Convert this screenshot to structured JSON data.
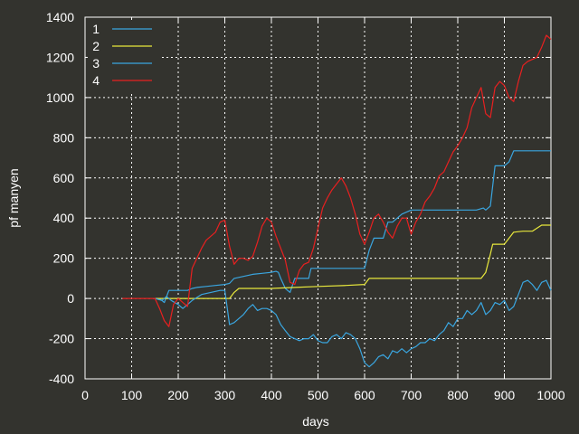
{
  "chart_data": {
    "type": "line",
    "xlabel": "days",
    "ylabel": "pf manyen",
    "xlim": [
      0,
      1000
    ],
    "ylim": [
      -400,
      1400
    ],
    "xticks": [
      0,
      100,
      200,
      300,
      400,
      500,
      600,
      700,
      800,
      900,
      1000
    ],
    "yticks": [
      -400,
      -200,
      0,
      200,
      400,
      600,
      800,
      1000,
      1200,
      1400
    ],
    "grid": true,
    "legend": "top-left",
    "series": [
      {
        "name": "1",
        "color": "#3aa6e0",
        "points": [
          [
            150,
            0
          ],
          [
            160,
            0
          ],
          [
            170,
            -20
          ],
          [
            180,
            40
          ],
          [
            220,
            40
          ],
          [
            230,
            50
          ],
          [
            240,
            55
          ],
          [
            260,
            60
          ],
          [
            280,
            65
          ],
          [
            300,
            70
          ],
          [
            310,
            75
          ],
          [
            320,
            100
          ],
          [
            340,
            110
          ],
          [
            360,
            120
          ],
          [
            380,
            125
          ],
          [
            400,
            130
          ],
          [
            410,
            135
          ],
          [
            415,
            130
          ],
          [
            420,
            100
          ],
          [
            430,
            50
          ],
          [
            440,
            30
          ],
          [
            450,
            100
          ],
          [
            480,
            100
          ],
          [
            485,
            150
          ],
          [
            500,
            150
          ],
          [
            550,
            150
          ],
          [
            560,
            150
          ],
          [
            590,
            150
          ],
          [
            600,
            150
          ],
          [
            610,
            240
          ],
          [
            620,
            300
          ],
          [
            640,
            300
          ],
          [
            650,
            380
          ],
          [
            660,
            380
          ],
          [
            680,
            420
          ],
          [
            700,
            440
          ],
          [
            720,
            440
          ],
          [
            760,
            440
          ],
          [
            800,
            440
          ],
          [
            840,
            440
          ],
          [
            855,
            450
          ],
          [
            860,
            440
          ],
          [
            870,
            460
          ],
          [
            880,
            660
          ],
          [
            900,
            660
          ],
          [
            910,
            680
          ],
          [
            920,
            735
          ],
          [
            960,
            735
          ],
          [
            1000,
            735
          ]
        ]
      },
      {
        "name": "2",
        "color": "#e8e83c",
        "points": [
          [
            150,
            0
          ],
          [
            200,
            0
          ],
          [
            250,
            0
          ],
          [
            300,
            0
          ],
          [
            310,
            0
          ],
          [
            320,
            30
          ],
          [
            330,
            50
          ],
          [
            400,
            50
          ],
          [
            450,
            55
          ],
          [
            500,
            60
          ],
          [
            560,
            65
          ],
          [
            600,
            70
          ],
          [
            610,
            100
          ],
          [
            650,
            100
          ],
          [
            700,
            100
          ],
          [
            750,
            100
          ],
          [
            800,
            100
          ],
          [
            850,
            100
          ],
          [
            860,
            130
          ],
          [
            870,
            220
          ],
          [
            875,
            270
          ],
          [
            900,
            270
          ],
          [
            920,
            330
          ],
          [
            940,
            335
          ],
          [
            960,
            335
          ],
          [
            980,
            365
          ],
          [
            1000,
            365
          ]
        ]
      },
      {
        "name": "3",
        "color": "#3aa6e0",
        "points": [
          [
            150,
            0
          ],
          [
            165,
            -10
          ],
          [
            175,
            10
          ],
          [
            185,
            -10
          ],
          [
            200,
            -30
          ],
          [
            210,
            -50
          ],
          [
            220,
            -30
          ],
          [
            230,
            -10
          ],
          [
            250,
            20
          ],
          [
            270,
            30
          ],
          [
            290,
            40
          ],
          [
            300,
            40
          ],
          [
            310,
            -130
          ],
          [
            320,
            -120
          ],
          [
            330,
            -100
          ],
          [
            340,
            -80
          ],
          [
            350,
            -50
          ],
          [
            360,
            -30
          ],
          [
            370,
            -60
          ],
          [
            380,
            -50
          ],
          [
            390,
            -50
          ],
          [
            400,
            -60
          ],
          [
            410,
            -80
          ],
          [
            420,
            -130
          ],
          [
            430,
            -160
          ],
          [
            440,
            -190
          ],
          [
            450,
            -200
          ],
          [
            460,
            -210
          ],
          [
            470,
            -200
          ],
          [
            480,
            -200
          ],
          [
            490,
            -180
          ],
          [
            500,
            -210
          ],
          [
            510,
            -220
          ],
          [
            520,
            -220
          ],
          [
            530,
            -190
          ],
          [
            540,
            -180
          ],
          [
            550,
            -200
          ],
          [
            560,
            -170
          ],
          [
            570,
            -180
          ],
          [
            580,
            -200
          ],
          [
            590,
            -250
          ],
          [
            600,
            -320
          ],
          [
            610,
            -340
          ],
          [
            620,
            -320
          ],
          [
            630,
            -290
          ],
          [
            640,
            -280
          ],
          [
            650,
            -300
          ],
          [
            660,
            -260
          ],
          [
            670,
            -270
          ],
          [
            680,
            -250
          ],
          [
            690,
            -270
          ],
          [
            700,
            -250
          ],
          [
            710,
            -240
          ],
          [
            720,
            -220
          ],
          [
            730,
            -220
          ],
          [
            740,
            -200
          ],
          [
            750,
            -210
          ],
          [
            760,
            -180
          ],
          [
            770,
            -160
          ],
          [
            780,
            -120
          ],
          [
            790,
            -140
          ],
          [
            800,
            -100
          ],
          [
            810,
            -100
          ],
          [
            820,
            -60
          ],
          [
            830,
            -80
          ],
          [
            840,
            -60
          ],
          [
            850,
            -20
          ],
          [
            860,
            -80
          ],
          [
            870,
            -60
          ],
          [
            880,
            -20
          ],
          [
            890,
            -30
          ],
          [
            900,
            -10
          ],
          [
            910,
            -60
          ],
          [
            920,
            -40
          ],
          [
            930,
            20
          ],
          [
            940,
            80
          ],
          [
            950,
            90
          ],
          [
            960,
            70
          ],
          [
            970,
            40
          ],
          [
            980,
            80
          ],
          [
            990,
            90
          ],
          [
            1000,
            40
          ]
        ]
      },
      {
        "name": "4",
        "color": "#e82020",
        "points": [
          [
            80,
            0
          ],
          [
            150,
            0
          ],
          [
            160,
            -50
          ],
          [
            170,
            -110
          ],
          [
            180,
            -140
          ],
          [
            190,
            -30
          ],
          [
            200,
            0
          ],
          [
            210,
            -20
          ],
          [
            220,
            -40
          ],
          [
            230,
            150
          ],
          [
            240,
            200
          ],
          [
            250,
            250
          ],
          [
            260,
            290
          ],
          [
            270,
            310
          ],
          [
            280,
            330
          ],
          [
            290,
            380
          ],
          [
            300,
            390
          ],
          [
            310,
            260
          ],
          [
            320,
            170
          ],
          [
            330,
            200
          ],
          [
            340,
            200
          ],
          [
            350,
            190
          ],
          [
            360,
            210
          ],
          [
            370,
            280
          ],
          [
            380,
            360
          ],
          [
            390,
            400
          ],
          [
            400,
            380
          ],
          [
            410,
            310
          ],
          [
            420,
            250
          ],
          [
            430,
            190
          ],
          [
            440,
            80
          ],
          [
            450,
            70
          ],
          [
            460,
            140
          ],
          [
            470,
            170
          ],
          [
            480,
            180
          ],
          [
            490,
            250
          ],
          [
            500,
            350
          ],
          [
            510,
            450
          ],
          [
            520,
            500
          ],
          [
            530,
            540
          ],
          [
            540,
            570
          ],
          [
            550,
            600
          ],
          [
            560,
            560
          ],
          [
            570,
            500
          ],
          [
            580,
            420
          ],
          [
            590,
            320
          ],
          [
            600,
            270
          ],
          [
            610,
            330
          ],
          [
            620,
            400
          ],
          [
            630,
            420
          ],
          [
            640,
            380
          ],
          [
            650,
            330
          ],
          [
            660,
            300
          ],
          [
            670,
            360
          ],
          [
            680,
            400
          ],
          [
            690,
            400
          ],
          [
            700,
            320
          ],
          [
            710,
            380
          ],
          [
            720,
            420
          ],
          [
            730,
            480
          ],
          [
            740,
            510
          ],
          [
            750,
            550
          ],
          [
            760,
            610
          ],
          [
            770,
            630
          ],
          [
            780,
            680
          ],
          [
            790,
            730
          ],
          [
            800,
            760
          ],
          [
            810,
            800
          ],
          [
            820,
            850
          ],
          [
            830,
            950
          ],
          [
            840,
            1000
          ],
          [
            850,
            1050
          ],
          [
            860,
            920
          ],
          [
            870,
            900
          ],
          [
            880,
            1050
          ],
          [
            890,
            1080
          ],
          [
            900,
            1060
          ],
          [
            910,
            1000
          ],
          [
            920,
            980
          ],
          [
            930,
            1080
          ],
          [
            940,
            1160
          ],
          [
            950,
            1180
          ],
          [
            960,
            1190
          ],
          [
            970,
            1200
          ],
          [
            980,
            1250
          ],
          [
            990,
            1310
          ],
          [
            1000,
            1290
          ]
        ]
      }
    ]
  }
}
